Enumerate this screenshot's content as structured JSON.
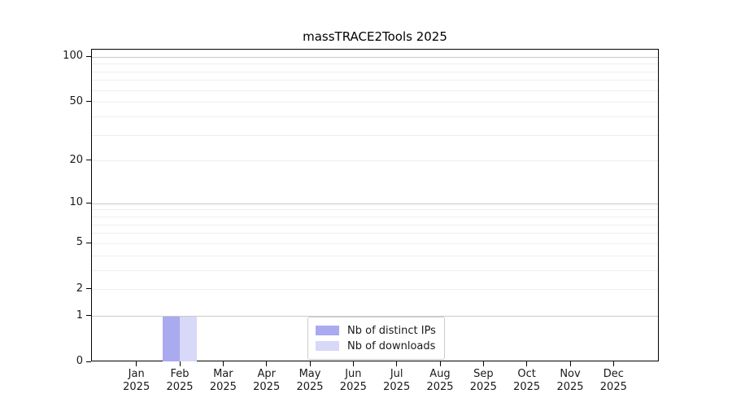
{
  "title": "massTRACE2Tools 2025",
  "legend": {
    "items": [
      {
        "label": "Nb of distinct IPs",
        "color": "#aaaaf0"
      },
      {
        "label": "Nb of downloads",
        "color": "#d8d8f8"
      }
    ]
  },
  "y_axis": {
    "tick_values": [
      0,
      1,
      2,
      5,
      10,
      20,
      50,
      100
    ]
  },
  "x_axis": {
    "months": [
      "Jan",
      "Feb",
      "Mar",
      "Apr",
      "May",
      "Jun",
      "Jul",
      "Aug",
      "Sep",
      "Oct",
      "Nov",
      "Dec"
    ],
    "year": "2025"
  },
  "chart_data": {
    "type": "bar",
    "title": "massTRACE2Tools 2025",
    "categories": [
      "Jan 2025",
      "Feb 2025",
      "Mar 2025",
      "Apr 2025",
      "May 2025",
      "Jun 2025",
      "Jul 2025",
      "Aug 2025",
      "Sep 2025",
      "Oct 2025",
      "Nov 2025",
      "Dec 2025"
    ],
    "series": [
      {
        "name": "Nb of distinct IPs",
        "color": "#aaaaf0",
        "values": [
          0,
          1,
          0,
          0,
          0,
          0,
          0,
          0,
          0,
          0,
          0,
          0
        ]
      },
      {
        "name": "Nb of downloads",
        "color": "#d8d8f8",
        "values": [
          0,
          1,
          0,
          0,
          0,
          0,
          0,
          0,
          0,
          0,
          0,
          0
        ]
      }
    ],
    "xlabel": "",
    "ylabel": "",
    "yscale": "log1p",
    "ylim": [
      0,
      112
    ],
    "yticks": [
      0,
      1,
      2,
      5,
      10,
      20,
      50,
      100
    ],
    "decade_gridlines": [
      1,
      10,
      100
    ],
    "minor_gridlines": [
      2,
      3,
      4,
      5,
      6,
      7,
      8,
      9,
      20,
      30,
      40,
      50,
      60,
      70,
      80,
      90
    ],
    "grid": "horizontal",
    "legend_position": "lower center"
  },
  "colors": {
    "grid_major": "#c9c9c9",
    "grid_minor": "#efefef",
    "spine": "#000000",
    "background": "#ffffff"
  }
}
